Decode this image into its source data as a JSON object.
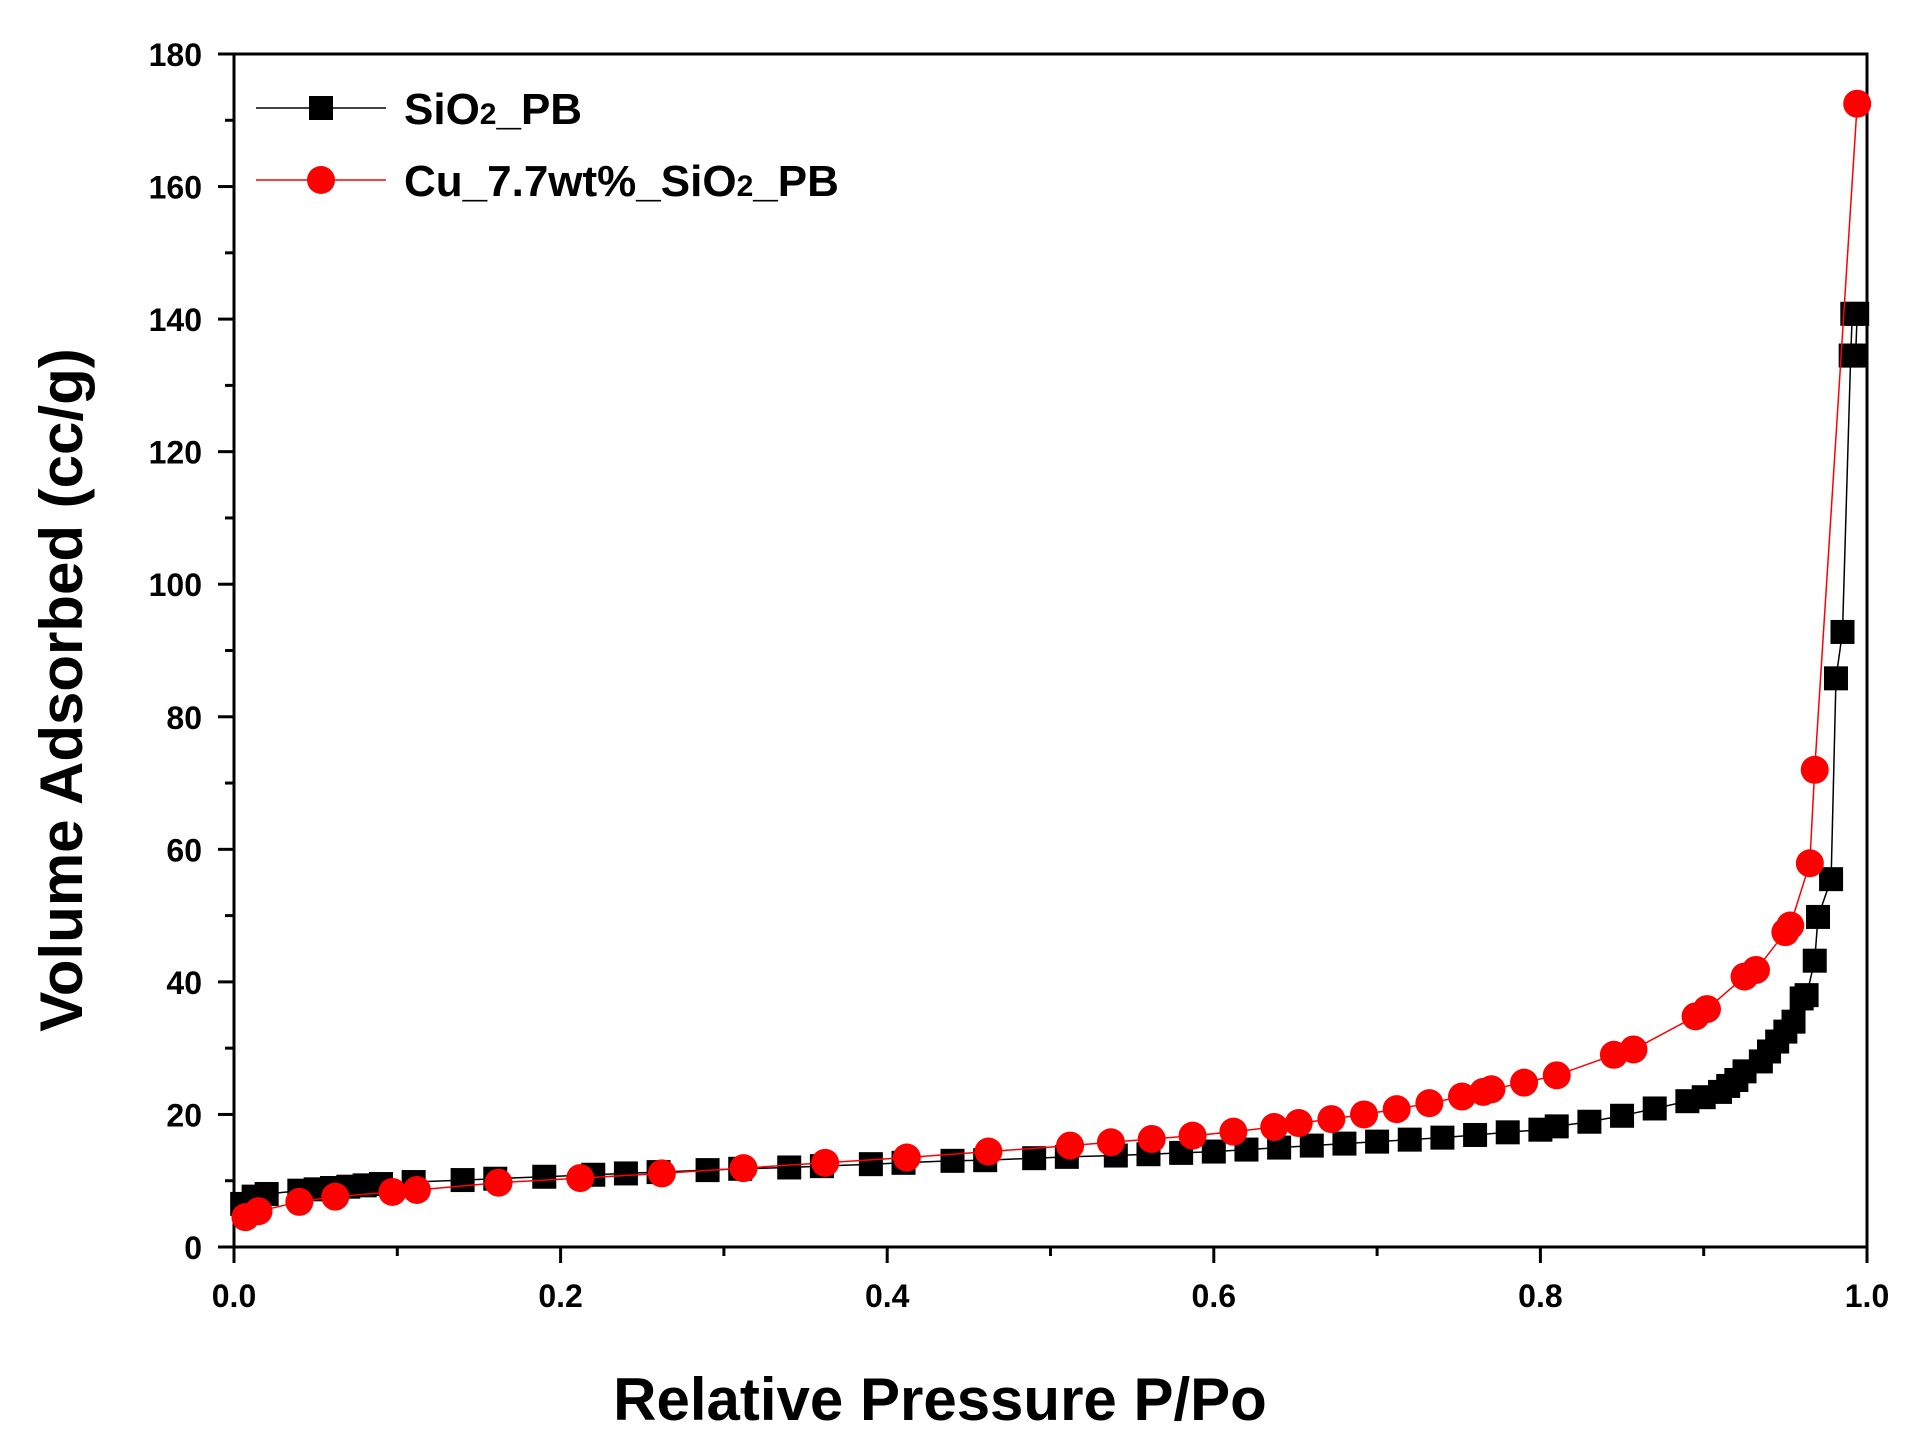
{
  "chart_data": {
    "type": "line",
    "title": "",
    "xlabel": "Relative Pressure P/Po",
    "ylabel": "Volume Adsorbed (cc/g)",
    "xlim": [
      0.0,
      1.0
    ],
    "ylim": [
      0,
      180
    ],
    "x_ticks": [
      0.0,
      0.2,
      0.4,
      0.6,
      0.8,
      1.0
    ],
    "x_tick_labels": [
      "0.0",
      "0.2",
      "0.4",
      "0.6",
      "0.8",
      "1.0"
    ],
    "y_ticks": [
      0,
      20,
      40,
      60,
      80,
      100,
      120,
      140,
      160,
      180
    ],
    "y_tick_labels": [
      "0",
      "20",
      "40",
      "60",
      "80",
      "100",
      "120",
      "140",
      "160",
      "180"
    ],
    "grid": false,
    "legend_position": "top-left",
    "series": [
      {
        "name": "SiO2_PB",
        "legend_main": "SiO",
        "legend_sub": "2",
        "legend_tail": "_PB",
        "color": "#000000",
        "marker": "square",
        "points": [
          [
            0.005,
            6.5
          ],
          [
            0.012,
            7.6
          ],
          [
            0.02,
            8.0
          ],
          [
            0.04,
            8.5
          ],
          [
            0.05,
            8.7
          ],
          [
            0.06,
            8.9
          ],
          [
            0.07,
            9.1
          ],
          [
            0.08,
            9.3
          ],
          [
            0.09,
            9.5
          ],
          [
            0.11,
            9.8
          ],
          [
            0.14,
            10.1
          ],
          [
            0.16,
            10.3
          ],
          [
            0.19,
            10.6
          ],
          [
            0.22,
            10.9
          ],
          [
            0.24,
            11.1
          ],
          [
            0.26,
            11.3
          ],
          [
            0.29,
            11.6
          ],
          [
            0.31,
            11.8
          ],
          [
            0.34,
            12.0
          ],
          [
            0.36,
            12.2
          ],
          [
            0.39,
            12.5
          ],
          [
            0.41,
            12.7
          ],
          [
            0.44,
            13.0
          ],
          [
            0.46,
            13.1
          ],
          [
            0.49,
            13.4
          ],
          [
            0.51,
            13.6
          ],
          [
            0.54,
            13.8
          ],
          [
            0.56,
            14.0
          ],
          [
            0.58,
            14.2
          ],
          [
            0.6,
            14.4
          ],
          [
            0.62,
            14.7
          ],
          [
            0.64,
            15.0
          ],
          [
            0.66,
            15.3
          ],
          [
            0.68,
            15.6
          ],
          [
            0.7,
            15.9
          ],
          [
            0.72,
            16.2
          ],
          [
            0.74,
            16.5
          ],
          [
            0.76,
            16.9
          ],
          [
            0.78,
            17.3
          ],
          [
            0.8,
            17.7
          ],
          [
            0.81,
            18.2
          ],
          [
            0.83,
            18.9
          ],
          [
            0.85,
            19.8
          ],
          [
            0.87,
            20.9
          ],
          [
            0.89,
            22.0
          ],
          [
            0.9,
            22.6
          ],
          [
            0.91,
            23.4
          ],
          [
            0.915,
            24.3
          ],
          [
            0.92,
            25.2
          ],
          [
            0.925,
            26.5
          ],
          [
            0.935,
            28.0
          ],
          [
            0.94,
            29.5
          ],
          [
            0.945,
            31.0
          ],
          [
            0.95,
            32.5
          ],
          [
            0.955,
            34.0
          ],
          [
            0.96,
            37.5
          ],
          [
            0.963,
            38.0
          ],
          [
            0.968,
            43.2
          ],
          [
            0.97,
            49.8
          ],
          [
            0.978,
            55.5
          ],
          [
            0.981,
            85.8
          ],
          [
            0.985,
            92.8
          ],
          [
            0.99,
            134.5
          ],
          [
            0.991,
            140.8
          ],
          [
            0.994,
            140.8
          ],
          [
            0.993,
            134.5
          ]
        ]
      },
      {
        "name": "Cu_7.7wt%_SiO2_PB",
        "legend_main": "Cu_7.7wt%_SiO",
        "legend_sub": "2",
        "legend_tail": "_PB",
        "color": "#ff0000",
        "marker": "circle",
        "points": [
          [
            0.007,
            4.5
          ],
          [
            0.015,
            5.4
          ],
          [
            0.04,
            6.8
          ],
          [
            0.062,
            7.6
          ],
          [
            0.097,
            8.3
          ],
          [
            0.112,
            8.6
          ],
          [
            0.162,
            9.7
          ],
          [
            0.212,
            10.4
          ],
          [
            0.262,
            11.1
          ],
          [
            0.312,
            11.9
          ],
          [
            0.362,
            12.7
          ],
          [
            0.412,
            13.5
          ],
          [
            0.462,
            14.4
          ],
          [
            0.512,
            15.3
          ],
          [
            0.537,
            15.8
          ],
          [
            0.562,
            16.3
          ],
          [
            0.587,
            16.8
          ],
          [
            0.612,
            17.4
          ],
          [
            0.637,
            18.1
          ],
          [
            0.652,
            18.7
          ],
          [
            0.672,
            19.3
          ],
          [
            0.692,
            20.0
          ],
          [
            0.712,
            20.8
          ],
          [
            0.732,
            21.7
          ],
          [
            0.752,
            22.7
          ],
          [
            0.765,
            23.4
          ],
          [
            0.77,
            23.8
          ],
          [
            0.79,
            24.8
          ],
          [
            0.81,
            25.9
          ],
          [
            0.845,
            29.0
          ],
          [
            0.857,
            29.8
          ],
          [
            0.895,
            34.8
          ],
          [
            0.902,
            35.9
          ],
          [
            0.925,
            40.8
          ],
          [
            0.932,
            41.8
          ],
          [
            0.95,
            47.5
          ],
          [
            0.953,
            48.5
          ],
          [
            0.965,
            57.9
          ],
          [
            0.968,
            72.0
          ],
          [
            0.994,
            172.5
          ]
        ]
      }
    ]
  }
}
